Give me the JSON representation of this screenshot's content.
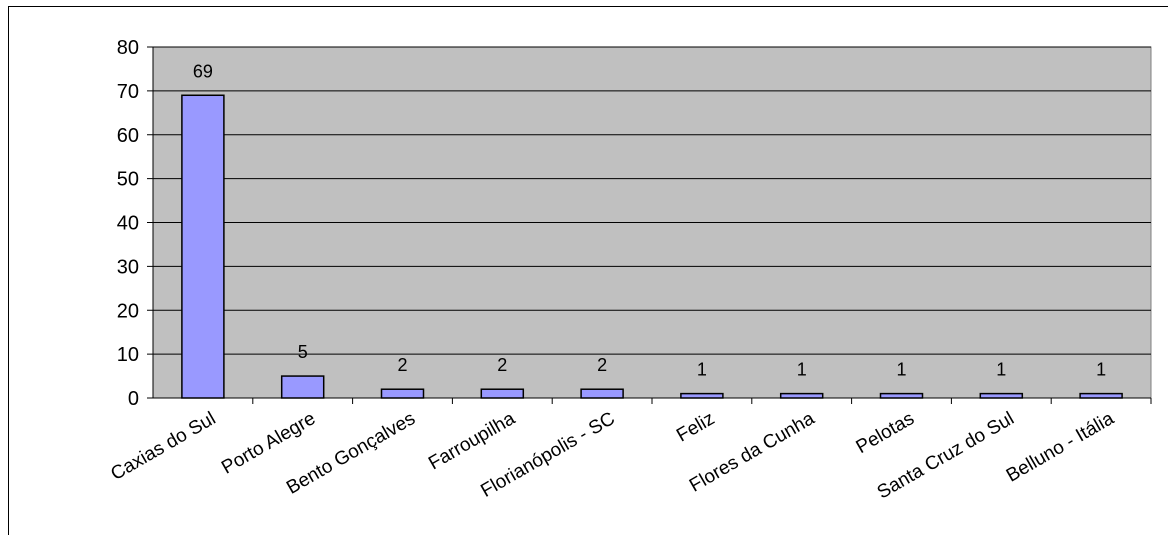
{
  "chart_data": {
    "type": "bar",
    "title": "",
    "xlabel": "",
    "ylabel": "",
    "categories": [
      "Caxias do Sul",
      "Porto Alegre",
      "Bento Gonçalves",
      "Farroupilha",
      "Florianópolis - SC",
      "Feliz",
      "Flores da Cunha",
      "Pelotas",
      "Santa Cruz do Sul",
      "Belluno - Itália"
    ],
    "values": [
      69,
      5,
      2,
      2,
      2,
      1,
      1,
      1,
      1,
      1
    ],
    "ylim": [
      0,
      80
    ],
    "yticks": [
      "0",
      "10",
      "20",
      "30",
      "40",
      "50",
      "60",
      "70",
      "80"
    ],
    "grid": true,
    "legend": "none",
    "colors": {
      "plot_background": "#c0c0c0",
      "bar_fill": "#9999ff",
      "bar_stroke": "#000000",
      "gridline": "#000000"
    }
  }
}
